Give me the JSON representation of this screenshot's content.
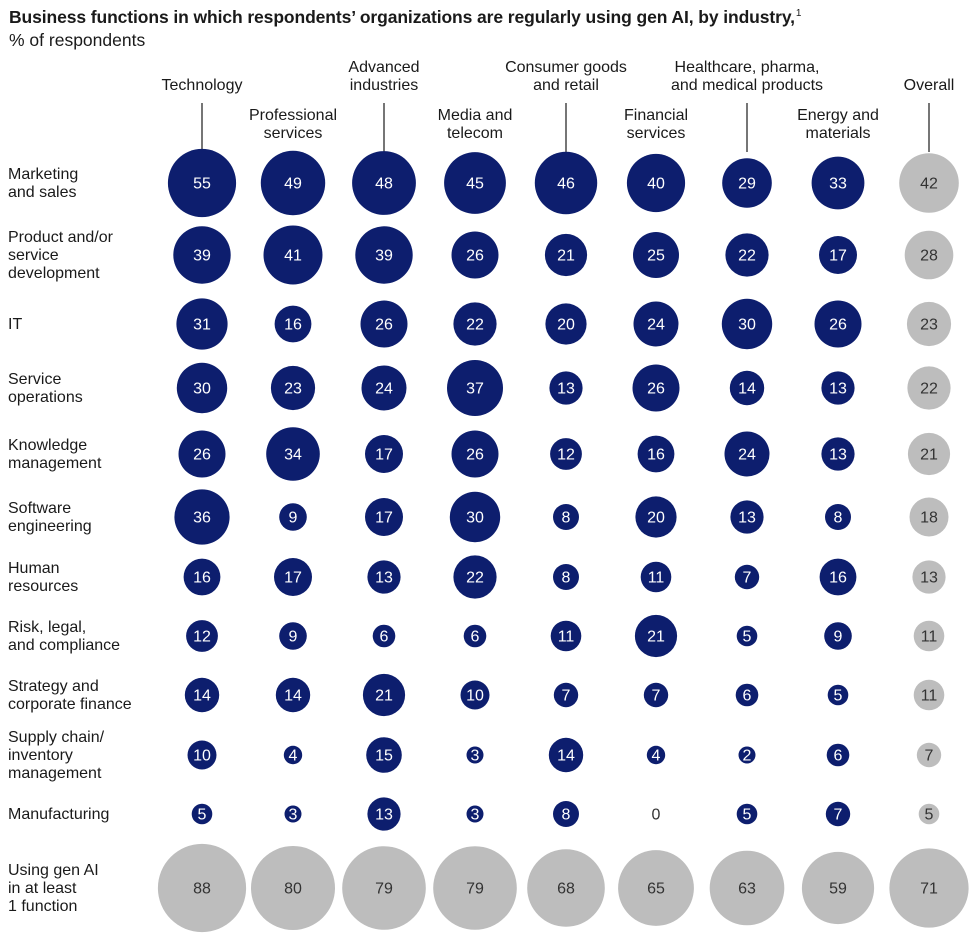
{
  "title": "Business functions in which respondents’ organizations are regularly using gen AI, by industry,",
  "title_footnote": "1",
  "subtitle": "% of respondents",
  "colors": {
    "industry_bubble": "#0d1e6e",
    "industry_text": "#ffffff",
    "overall_bubble": "#bdbdbd",
    "overall_text": "#333333",
    "connector": "#1a1a1a"
  },
  "chart_data": {
    "type": "bubble-matrix",
    "unit": "% of respondents",
    "columns": [
      {
        "name": "Technology",
        "label_lines": [
          "Technology"
        ],
        "label_tier": "upper"
      },
      {
        "name": "Professional services",
        "label_lines": [
          "Professional",
          "services"
        ],
        "label_tier": "lower"
      },
      {
        "name": "Advanced industries",
        "label_lines": [
          "Advanced",
          "industries"
        ],
        "label_tier": "upper"
      },
      {
        "name": "Media and telecom",
        "label_lines": [
          "Media and",
          "telecom"
        ],
        "label_tier": "lower"
      },
      {
        "name": "Consumer goods and retail",
        "label_lines": [
          "Consumer goods",
          "and retail"
        ],
        "label_tier": "upper"
      },
      {
        "name": "Financial services",
        "label_lines": [
          "Financial",
          "services"
        ],
        "label_tier": "lower"
      },
      {
        "name": "Healthcare, pharma, and medical products",
        "label_lines": [
          "Healthcare, pharma,",
          "and medical products"
        ],
        "label_tier": "upper"
      },
      {
        "name": "Energy and materials",
        "label_lines": [
          "Energy and",
          "materials"
        ],
        "label_tier": "lower"
      },
      {
        "name": "Overall",
        "label_lines": [
          "Overall"
        ],
        "label_tier": "upper",
        "style": "overall"
      }
    ],
    "rows": [
      {
        "name": "Marketing and sales",
        "label_lines": [
          "Marketing",
          "and sales"
        ],
        "values": [
          55,
          49,
          48,
          45,
          46,
          40,
          29,
          33,
          42
        ]
      },
      {
        "name": "Product and/or service development",
        "label_lines": [
          "Product and/or",
          "service",
          "development"
        ],
        "values": [
          39,
          41,
          39,
          26,
          21,
          25,
          22,
          17,
          28
        ]
      },
      {
        "name": "IT",
        "label_lines": [
          "IT"
        ],
        "values": [
          31,
          16,
          26,
          22,
          20,
          24,
          30,
          26,
          23
        ]
      },
      {
        "name": "Service operations",
        "label_lines": [
          "Service",
          "operations"
        ],
        "values": [
          30,
          23,
          24,
          37,
          13,
          26,
          14,
          13,
          22
        ]
      },
      {
        "name": "Knowledge management",
        "label_lines": [
          "Knowledge",
          "management"
        ],
        "values": [
          26,
          34,
          17,
          26,
          12,
          16,
          24,
          13,
          21
        ]
      },
      {
        "name": "Software engineering",
        "label_lines": [
          "Software",
          "engineering"
        ],
        "values": [
          36,
          9,
          17,
          30,
          8,
          20,
          13,
          8,
          18
        ]
      },
      {
        "name": "Human resources",
        "label_lines": [
          "Human",
          "resources"
        ],
        "values": [
          16,
          17,
          13,
          22,
          8,
          11,
          7,
          16,
          13
        ]
      },
      {
        "name": "Risk, legal, and compliance",
        "label_lines": [
          "Risk, legal,",
          "and compliance"
        ],
        "values": [
          12,
          9,
          6,
          6,
          11,
          21,
          5,
          9,
          11
        ]
      },
      {
        "name": "Strategy and corporate finance",
        "label_lines": [
          "Strategy and",
          "corporate finance"
        ],
        "values": [
          14,
          14,
          21,
          10,
          7,
          7,
          6,
          5,
          11
        ]
      },
      {
        "name": "Supply chain/ inventory management",
        "label_lines": [
          "Supply chain/",
          "inventory",
          "management"
        ],
        "values": [
          10,
          4,
          15,
          3,
          14,
          4,
          2,
          6,
          7
        ]
      },
      {
        "name": "Manufacturing",
        "label_lines": [
          "Manufacturing"
        ],
        "values": [
          5,
          3,
          13,
          3,
          8,
          0,
          5,
          7,
          5
        ]
      },
      {
        "name": "Using gen AI in at least 1 function",
        "label_lines": [
          "Using gen AI",
          "in at least",
          "1 function"
        ],
        "values": [
          88,
          80,
          79,
          79,
          68,
          65,
          63,
          59,
          71
        ],
        "style": "summary"
      }
    ]
  }
}
